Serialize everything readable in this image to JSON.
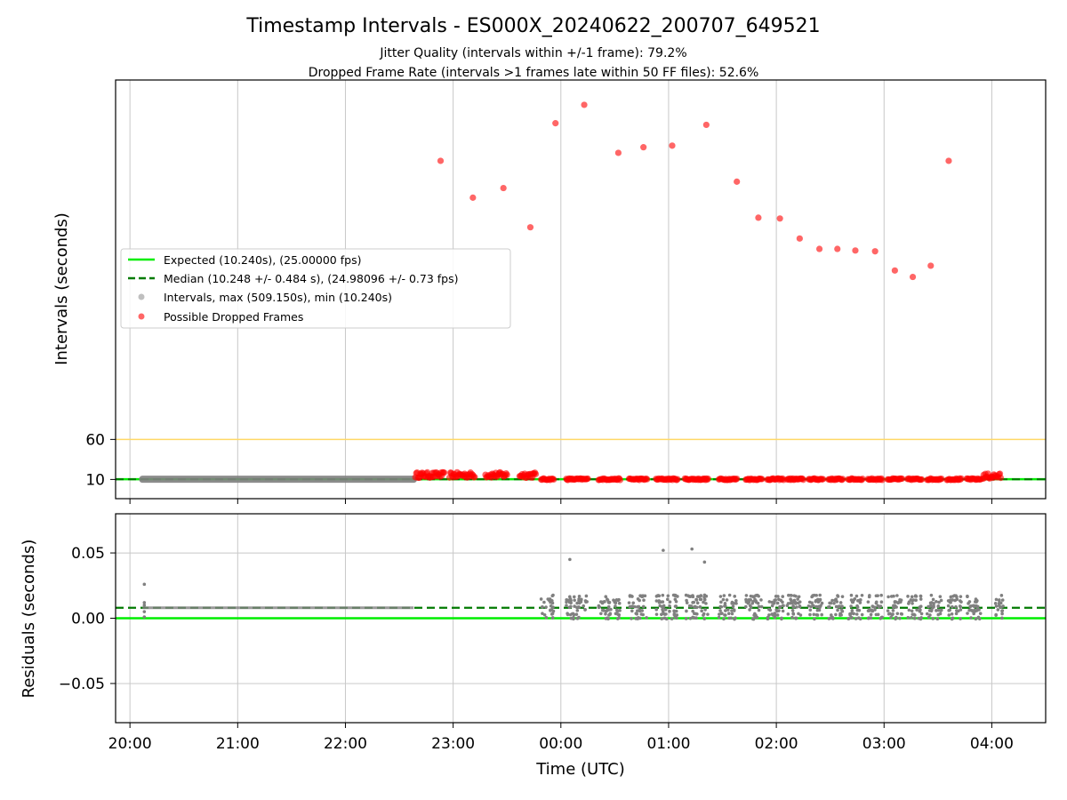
{
  "header": {
    "title": "Timestamp Intervals - ES000X_20240622_200707_649521",
    "subtitle1": "Jitter Quality (intervals within +/-1 frame): 79.2%",
    "subtitle2": "Dropped Frame Rate (intervals >1 frames late within 50 FF files): 52.6%"
  },
  "colors": {
    "expected": "#00ee00",
    "median": "#007a00",
    "interval_points": "#808080",
    "dropped_points": "#ff0000",
    "reference_line": "#ffd966",
    "grid": "#c8c8c8"
  },
  "legend": {
    "expected": "Expected (10.240s), (25.00000 fps)",
    "median": "Median (10.248 +/- 0.484 s), (24.98096 +/- 0.73 fps)",
    "intervals": "Intervals, max (509.150s), min (10.240s)",
    "dropped": "Possible Dropped Frames"
  },
  "chart_data": [
    {
      "type": "scatter",
      "ylabel": "Intervals (seconds)",
      "xlabel": "",
      "y_tick_labels": [
        "10",
        "60"
      ],
      "y_ticks": [
        10,
        60
      ],
      "ylim": [
        -14,
        509
      ],
      "grid": "vertical",
      "legend_placement": "center-left",
      "expected_interval": 10.24,
      "median_interval": 10.248,
      "reference_line_value": 60,
      "interval_band": {
        "x_start": "20:07",
        "x_end": "22:38",
        "value": 10.248
      },
      "dropped_frame_clusters": [
        {
          "x_start": "22:39",
          "x_end": "22:55",
          "value": 15.5
        },
        {
          "x_start": "22:58",
          "x_end": "23:12",
          "value": 15.5
        },
        {
          "x_start": "23:18",
          "x_end": "23:30",
          "value": 15.5
        },
        {
          "x_start": "23:37",
          "x_end": "23:46",
          "value": 15.5
        },
        {
          "x_start": "23:49",
          "x_end": "23:56",
          "value": 10.3
        },
        {
          "x_start": "00:03",
          "x_end": "00:15",
          "value": 10.3
        },
        {
          "x_start": "00:21",
          "x_end": "00:33",
          "value": 10.3
        },
        {
          "x_start": "00:38",
          "x_end": "00:48",
          "value": 10.3
        },
        {
          "x_start": "00:53",
          "x_end": "01:05",
          "value": 10.3
        },
        {
          "x_start": "01:09",
          "x_end": "01:22",
          "value": 10.3
        },
        {
          "x_start": "01:28",
          "x_end": "01:38",
          "value": 10.3
        },
        {
          "x_start": "01:43",
          "x_end": "01:52",
          "value": 10.3
        },
        {
          "x_start": "01:55",
          "x_end": "02:04",
          "value": 10.3
        },
        {
          "x_start": "02:06",
          "x_end": "02:15",
          "value": 10.3
        },
        {
          "x_start": "02:18",
          "x_end": "02:26",
          "value": 10.3
        },
        {
          "x_start": "02:29",
          "x_end": "02:37",
          "value": 10.3
        },
        {
          "x_start": "02:40",
          "x_end": "02:48",
          "value": 10.3
        },
        {
          "x_start": "02:51",
          "x_end": "02:59",
          "value": 10.3
        },
        {
          "x_start": "03:02",
          "x_end": "03:10",
          "value": 10.3
        },
        {
          "x_start": "03:13",
          "x_end": "03:21",
          "value": 10.3
        },
        {
          "x_start": "03:24",
          "x_end": "03:32",
          "value": 10.3
        },
        {
          "x_start": "03:35",
          "x_end": "03:43",
          "value": 10.3
        },
        {
          "x_start": "03:46",
          "x_end": "03:54",
          "value": 10.3
        },
        {
          "x_start": "03:55",
          "x_end": "04:05",
          "value": 14.0
        }
      ],
      "dropped_frame_outliers": [
        {
          "x": "22:53",
          "y": 408
        },
        {
          "x": "23:11",
          "y": 362
        },
        {
          "x": "23:28",
          "y": 374
        },
        {
          "x": "23:43",
          "y": 325
        },
        {
          "x": "23:57",
          "y": 455
        },
        {
          "x": "00:13",
          "y": 478
        },
        {
          "x": "00:32",
          "y": 418
        },
        {
          "x": "00:46",
          "y": 425
        },
        {
          "x": "01:02",
          "y": 427
        },
        {
          "x": "01:21",
          "y": 453
        },
        {
          "x": "01:38",
          "y": 382
        },
        {
          "x": "01:50",
          "y": 337
        },
        {
          "x": "02:02",
          "y": 336
        },
        {
          "x": "02:13",
          "y": 311
        },
        {
          "x": "02:24",
          "y": 298
        },
        {
          "x": "02:34",
          "y": 298
        },
        {
          "x": "02:44",
          "y": 296
        },
        {
          "x": "02:55",
          "y": 295
        },
        {
          "x": "03:06",
          "y": 271
        },
        {
          "x": "03:16",
          "y": 263
        },
        {
          "x": "03:26",
          "y": 277
        },
        {
          "x": "03:36",
          "y": 408
        }
      ]
    },
    {
      "type": "scatter",
      "ylabel": "Residuals (seconds)",
      "xlabel": "Time (UTC)",
      "x_tick_labels": [
        "20:00",
        "21:00",
        "22:00",
        "23:00",
        "00:00",
        "01:00",
        "02:00",
        "03:00",
        "04:00"
      ],
      "y_tick_labels": [
        "0.05",
        "0.00",
        "−0.05"
      ],
      "y_ticks": [
        0.05,
        0.0,
        -0.05
      ],
      "ylim": [
        -0.08,
        0.08
      ],
      "grid": "both",
      "expected_residual": 0.0,
      "median_residual": 0.008,
      "flat_band": {
        "x_start": "20:07",
        "x_end": "22:38",
        "value": 0.008
      },
      "startup_points": [
        {
          "x": "20:08",
          "y": 0.026
        },
        {
          "x": "20:08",
          "y": 0.012
        },
        {
          "x": "20:08",
          "y": 0.01
        },
        {
          "x": "20:08",
          "y": 0.005
        },
        {
          "x": "20:08",
          "y": 0.001
        }
      ],
      "residual_clusters": [
        {
          "x_start": "23:49",
          "x_end": "23:56"
        },
        {
          "x_start": "00:03",
          "x_end": "00:15"
        },
        {
          "x_start": "00:21",
          "x_end": "00:33"
        },
        {
          "x_start": "00:38",
          "x_end": "00:48"
        },
        {
          "x_start": "00:53",
          "x_end": "01:05"
        },
        {
          "x_start": "01:09",
          "x_end": "01:22"
        },
        {
          "x_start": "01:28",
          "x_end": "01:38"
        },
        {
          "x_start": "01:43",
          "x_end": "01:52"
        },
        {
          "x_start": "01:55",
          "x_end": "02:04"
        },
        {
          "x_start": "02:06",
          "x_end": "02:15"
        },
        {
          "x_start": "02:18",
          "x_end": "02:26"
        },
        {
          "x_start": "02:29",
          "x_end": "02:37"
        },
        {
          "x_start": "02:40",
          "x_end": "02:48"
        },
        {
          "x_start": "02:51",
          "x_end": "02:59"
        },
        {
          "x_start": "03:02",
          "x_end": "03:10"
        },
        {
          "x_start": "03:13",
          "x_end": "03:21"
        },
        {
          "x_start": "03:24",
          "x_end": "03:32"
        },
        {
          "x_start": "03:35",
          "x_end": "03:43"
        },
        {
          "x_start": "03:46",
          "x_end": "03:54"
        },
        {
          "x_start": "04:02",
          "x_end": "04:07"
        }
      ],
      "residual_cluster_values": [
        0.0,
        0.003,
        0.006,
        0.009,
        0.012,
        0.014,
        0.017
      ],
      "residual_outliers": [
        {
          "x": "00:05",
          "y": 0.045
        },
        {
          "x": "00:57",
          "y": 0.052
        },
        {
          "x": "01:13",
          "y": 0.053
        },
        {
          "x": "01:20",
          "y": 0.043
        }
      ]
    }
  ]
}
